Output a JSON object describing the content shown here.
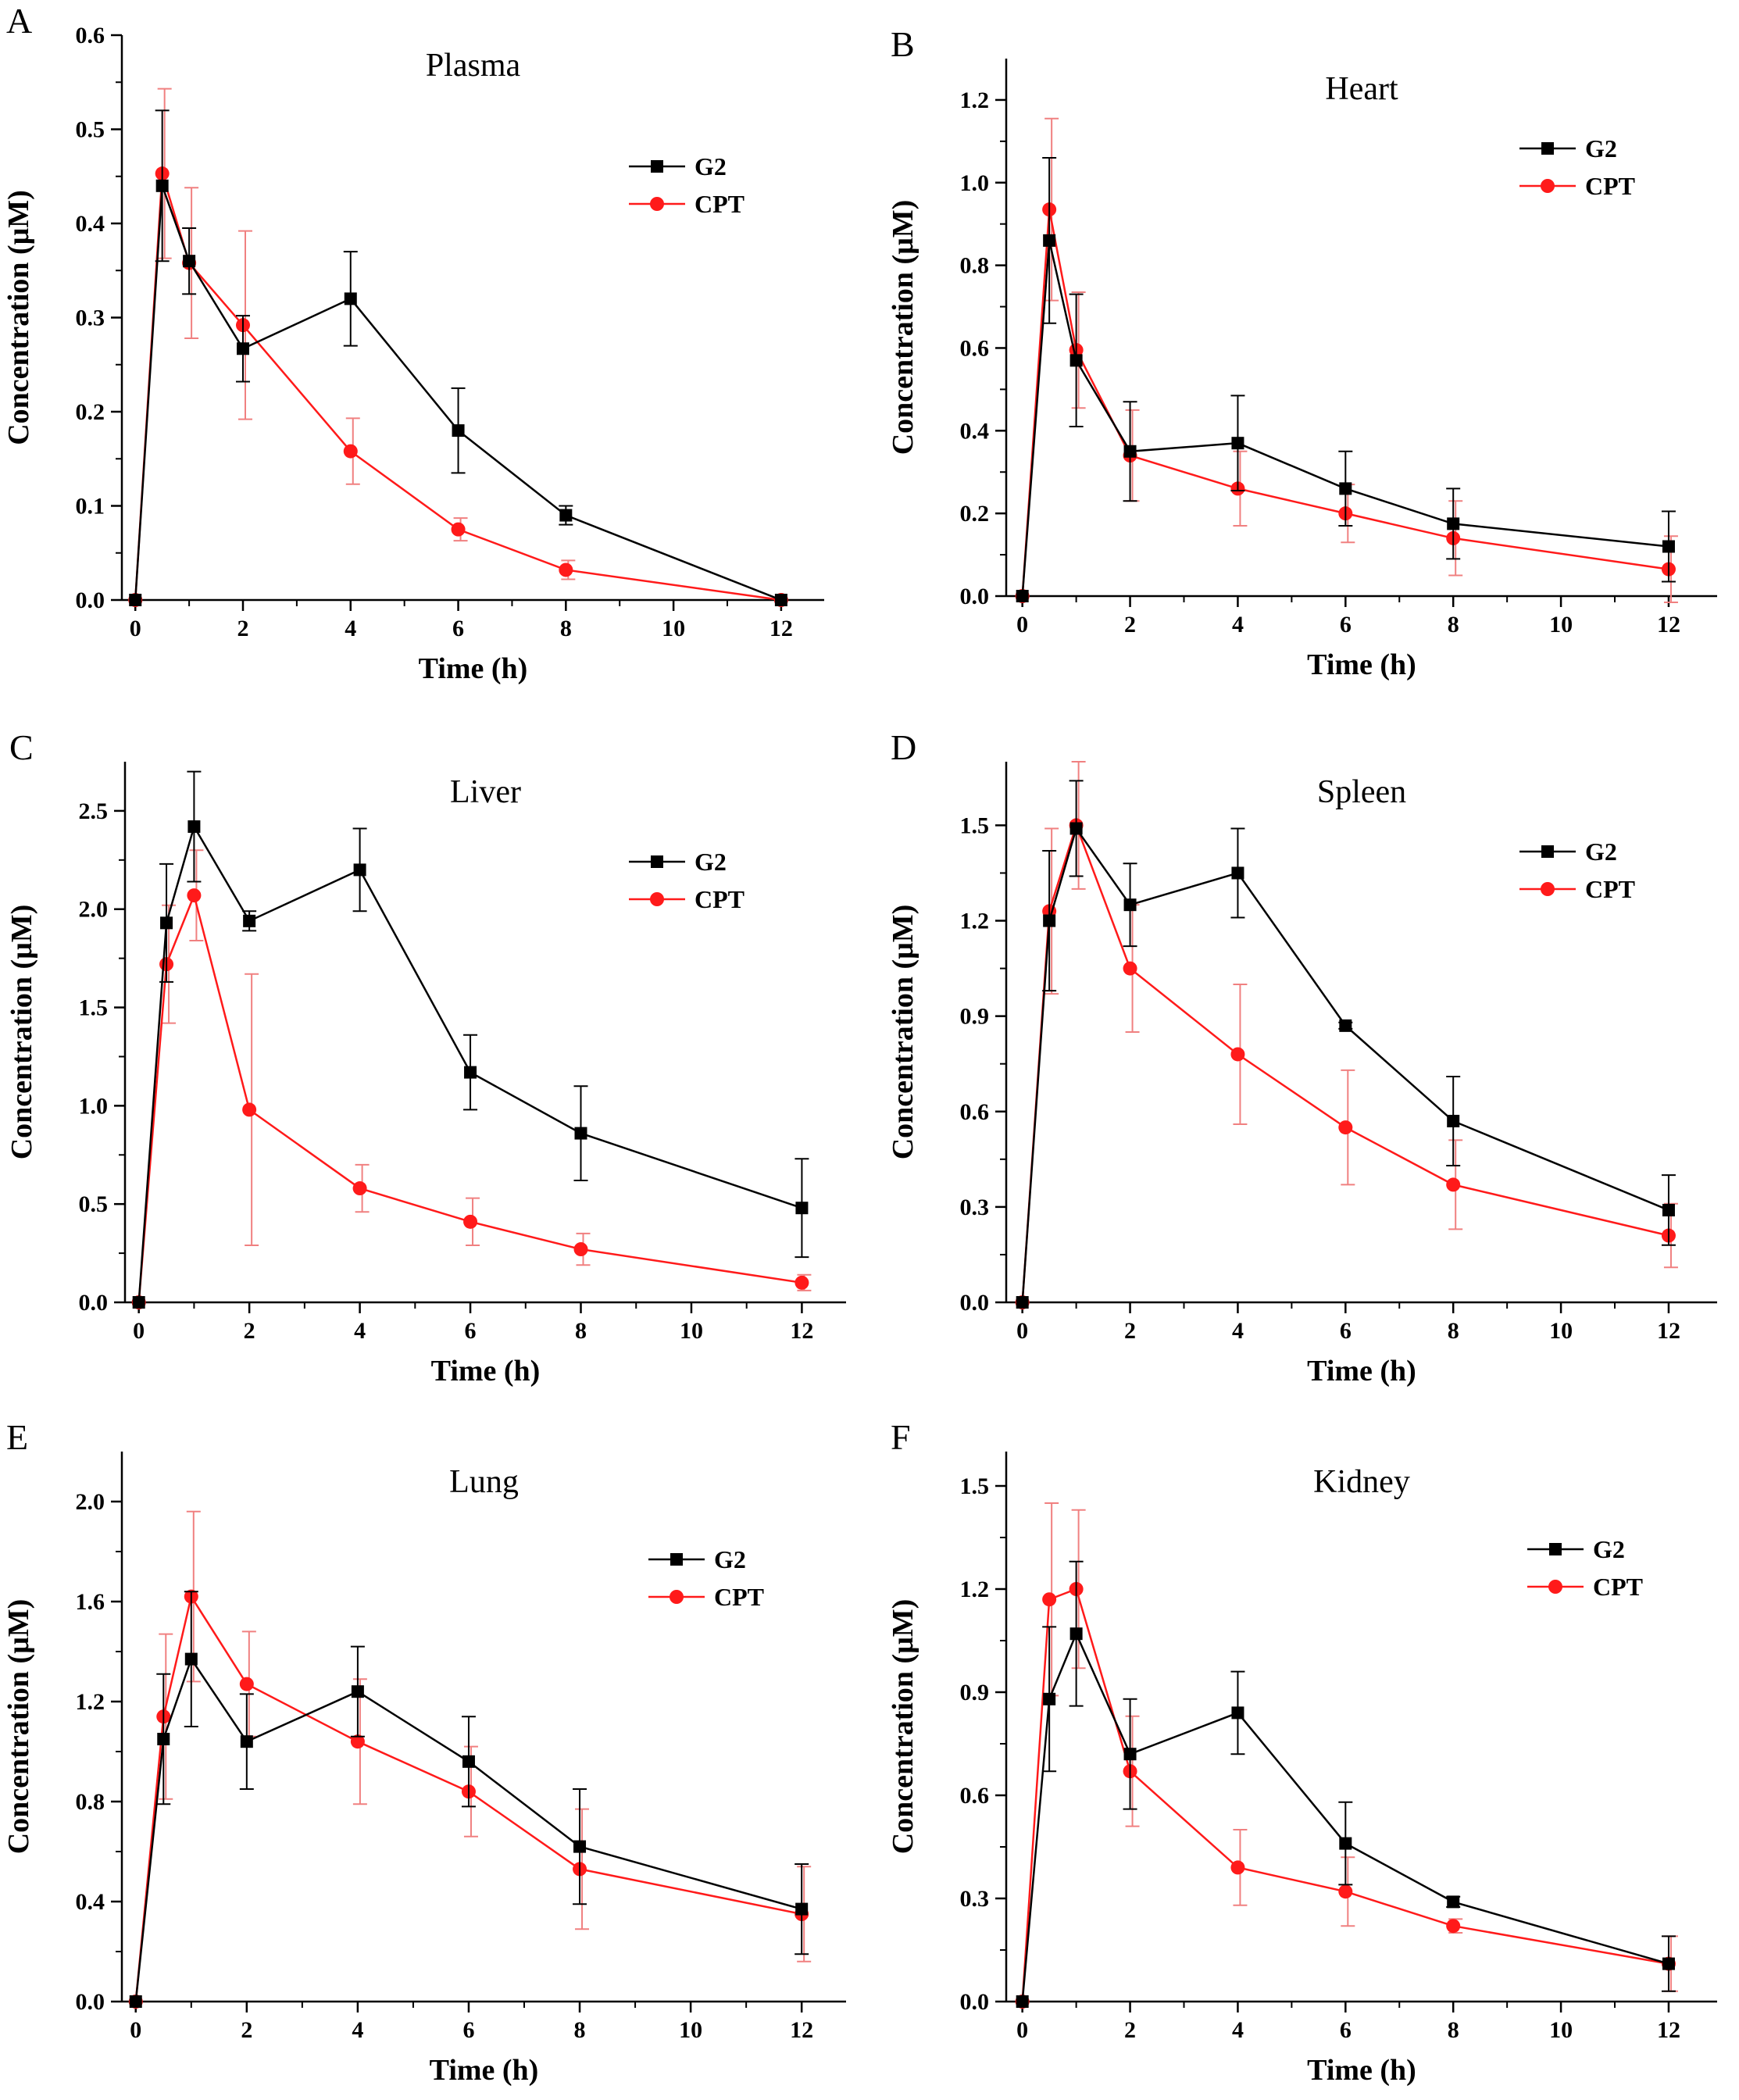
{
  "figure": {
    "xlabel": "Time (h)",
    "ylabel": "Concentration (μM)"
  },
  "colors": {
    "G2": "#000000",
    "CPT": "#ff1a1a",
    "CPT_err": "#f08080"
  },
  "chart_data": [
    {
      "type": "line",
      "letter": "A",
      "title": "Plasma",
      "xlabel": "Time (h)",
      "ylabel": "Concentration (μM)",
      "x": [
        0,
        0.5,
        1,
        2,
        4,
        6,
        8,
        12
      ],
      "xlim": [
        -0.25,
        12.8
      ],
      "ylim": [
        0,
        0.6
      ],
      "xticks": [
        "0",
        "2",
        "4",
        "6",
        "8",
        "10",
        "12"
      ],
      "yticks": [
        "0.0",
        "0.1",
        "0.2",
        "0.3",
        "0.4",
        "0.5",
        "0.6"
      ],
      "series": [
        {
          "name": "G2",
          "values": [
            0,
            0.44,
            0.36,
            0.267,
            0.32,
            0.18,
            0.09,
            0
          ],
          "errors": [
            0,
            0.08,
            0.035,
            0.035,
            0.05,
            0.045,
            0.01,
            0
          ]
        },
        {
          "name": "CPT",
          "values": [
            0,
            0.453,
            0.358,
            0.292,
            0.158,
            0.075,
            0.032,
            0
          ],
          "errors": [
            0,
            0.09,
            0.08,
            0.1,
            0.035,
            0.012,
            0.01,
            0
          ]
        }
      ]
    },
    {
      "type": "line",
      "letter": "B",
      "title": "Heart",
      "xlabel": "Time (h)",
      "ylabel": "Concentration (μM)",
      "x": [
        0,
        0.5,
        1,
        2,
        4,
        6,
        8,
        12
      ],
      "xlim": [
        -0.3,
        12.9
      ],
      "ylim": [
        0,
        1.3
      ],
      "xticks": [
        "0",
        "2",
        "4",
        "6",
        "8",
        "10",
        "12"
      ],
      "yticks": [
        "0.0",
        "0.2",
        "0.4",
        "0.6",
        "0.8",
        "1.0",
        "1.2"
      ],
      "series": [
        {
          "name": "G2",
          "values": [
            0,
            0.86,
            0.57,
            0.35,
            0.37,
            0.26,
            0.175,
            0.12
          ],
          "errors": [
            0,
            0.2,
            0.16,
            0.12,
            0.115,
            0.09,
            0.085,
            0.085
          ]
        },
        {
          "name": "CPT",
          "values": [
            0,
            0.935,
            0.595,
            0.34,
            0.26,
            0.2,
            0.14,
            0.065
          ],
          "errors": [
            0,
            0.22,
            0.14,
            0.11,
            0.09,
            0.07,
            0.09,
            0.08
          ]
        }
      ]
    },
    {
      "type": "line",
      "letter": "C",
      "title": "Liver",
      "xlabel": "Time (h)",
      "ylabel": "Concentration (μM)",
      "x": [
        0,
        0.5,
        1,
        2,
        4,
        6,
        8,
        12
      ],
      "xlim": [
        -0.25,
        12.8
      ],
      "ylim": [
        0,
        2.75
      ],
      "xticks": [
        "0",
        "2",
        "4",
        "6",
        "8",
        "10",
        "12"
      ],
      "yticks": [
        "0.0",
        "0.5",
        "1.0",
        "1.5",
        "2.0",
        "2.5"
      ],
      "series": [
        {
          "name": "G2",
          "values": [
            0,
            1.93,
            2.42,
            1.94,
            2.2,
            1.17,
            0.86,
            0.48
          ],
          "errors": [
            0,
            0.3,
            0.28,
            0.05,
            0.21,
            0.19,
            0.24,
            0.25
          ]
        },
        {
          "name": "CPT",
          "values": [
            0,
            1.72,
            2.07,
            0.98,
            0.58,
            0.41,
            0.27,
            0.1
          ],
          "errors": [
            0,
            0.3,
            0.23,
            0.69,
            0.12,
            0.12,
            0.08,
            0.04
          ]
        }
      ]
    },
    {
      "type": "line",
      "letter": "D",
      "title": "Spleen",
      "xlabel": "Time (h)",
      "ylabel": "Concentration (μM)",
      "x": [
        0,
        0.5,
        1,
        2,
        4,
        6,
        8,
        12
      ],
      "xlim": [
        -0.3,
        12.9
      ],
      "ylim": [
        0,
        1.7
      ],
      "xticks": [
        "0",
        "2",
        "4",
        "6",
        "8",
        "10",
        "12"
      ],
      "yticks": [
        "0.0",
        "0.3",
        "0.6",
        "0.9",
        "1.2",
        "1.5"
      ],
      "series": [
        {
          "name": "G2",
          "values": [
            0,
            1.2,
            1.49,
            1.25,
            1.35,
            0.87,
            0.57,
            0.29
          ],
          "errors": [
            0,
            0.22,
            0.15,
            0.13,
            0.14,
            0.01,
            0.14,
            0.11
          ]
        },
        {
          "name": "CPT",
          "values": [
            0,
            1.23,
            1.5,
            1.05,
            0.78,
            0.55,
            0.37,
            0.21
          ],
          "errors": [
            0,
            0.26,
            0.2,
            0.2,
            0.22,
            0.18,
            0.14,
            0.1
          ]
        }
      ]
    },
    {
      "type": "line",
      "letter": "E",
      "title": "Lung",
      "xlabel": "Time (h)",
      "ylabel": "Concentration (μM)",
      "x": [
        0,
        0.5,
        1,
        2,
        4,
        6,
        8,
        12
      ],
      "xlim": [
        -0.25,
        12.8
      ],
      "ylim": [
        0,
        2.2
      ],
      "xticks": [
        "0",
        "2",
        "4",
        "6",
        "8",
        "10",
        "12"
      ],
      "yticks": [
        "0.0",
        "0.4",
        "0.8",
        "1.2",
        "1.6",
        "2.0"
      ],
      "series": [
        {
          "name": "G2",
          "values": [
            0,
            1.05,
            1.37,
            1.04,
            1.24,
            0.96,
            0.62,
            0.37
          ],
          "errors": [
            0,
            0.26,
            0.27,
            0.19,
            0.18,
            0.18,
            0.23,
            0.18
          ]
        },
        {
          "name": "CPT",
          "values": [
            0,
            1.14,
            1.62,
            1.27,
            1.04,
            0.84,
            0.53,
            0.35
          ],
          "errors": [
            0,
            0.33,
            0.34,
            0.21,
            0.25,
            0.18,
            0.24,
            0.19
          ]
        }
      ]
    },
    {
      "type": "line",
      "letter": "F",
      "title": "Kidney",
      "xlabel": "Time (h)",
      "ylabel": "Concentration (μM)",
      "x": [
        0,
        0.5,
        1,
        2,
        4,
        6,
        8,
        12
      ],
      "xlim": [
        -0.3,
        12.9
      ],
      "ylim": [
        0,
        1.6
      ],
      "xticks": [
        "0",
        "2",
        "4",
        "6",
        "8",
        "10",
        "12"
      ],
      "yticks": [
        "0.0",
        "0.3",
        "0.6",
        "0.9",
        "1.2",
        "1.5"
      ],
      "series": [
        {
          "name": "G2",
          "values": [
            0,
            0.88,
            1.07,
            0.72,
            0.84,
            0.46,
            0.29,
            0.11
          ],
          "errors": [
            0,
            0.21,
            0.21,
            0.16,
            0.12,
            0.12,
            0.015,
            0.08
          ]
        },
        {
          "name": "CPT",
          "values": [
            0,
            1.17,
            1.2,
            0.67,
            0.39,
            0.32,
            0.22,
            0.11
          ],
          "errors": [
            0,
            0.28,
            0.23,
            0.16,
            0.11,
            0.1,
            0.02,
            0.08
          ]
        }
      ]
    }
  ]
}
